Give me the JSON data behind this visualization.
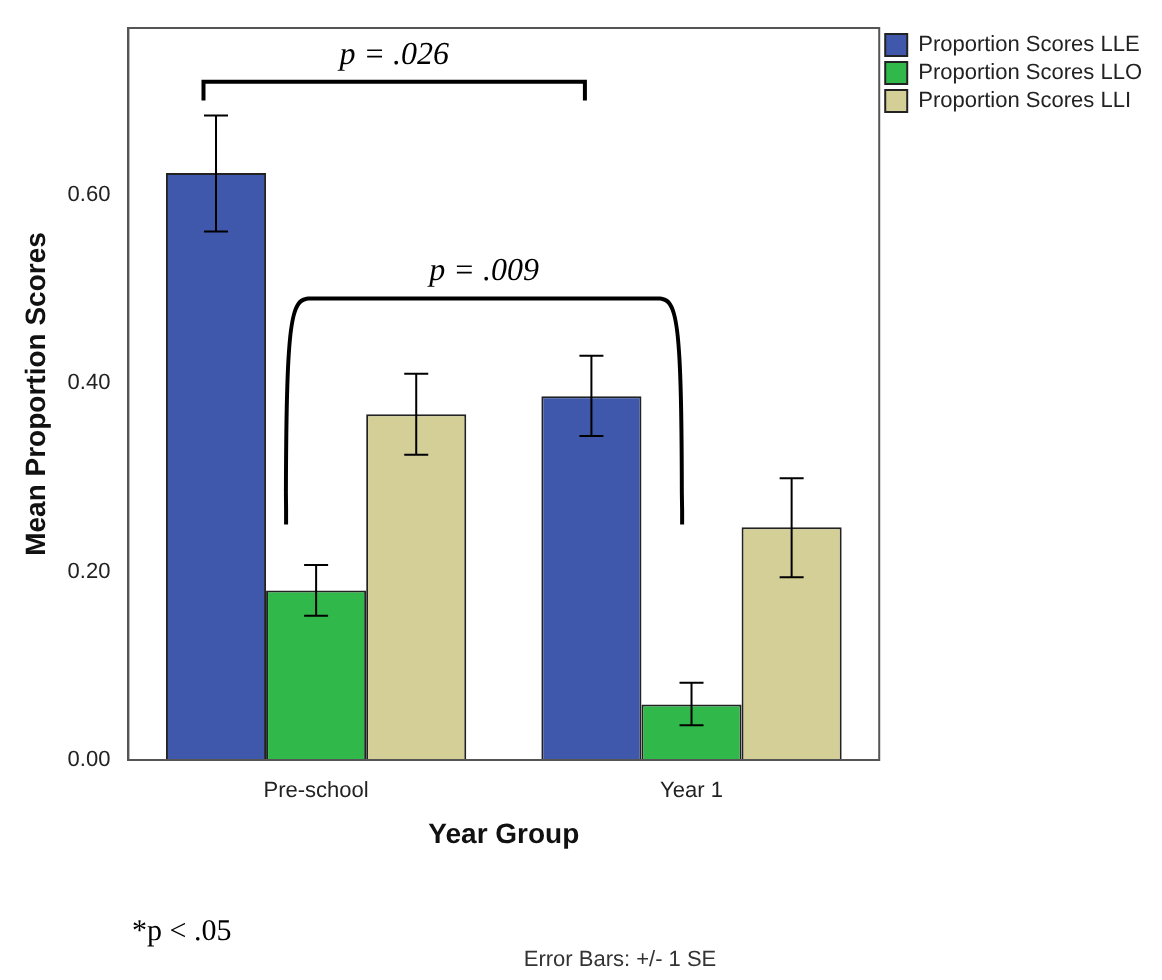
{
  "chart_data": {
    "type": "bar",
    "xlabel": "Year Group",
    "ylabel": "Mean Proportion Scores",
    "categories": [
      "Pre-school",
      "Year 1"
    ],
    "series": [
      {
        "name": "Proportion Scores LLE",
        "color": "#3f58ab",
        "values": [
          0.623,
          0.386
        ],
        "errors": [
          [
            0.561,
            0.684
          ],
          [
            0.344,
            0.429
          ]
        ]
      },
      {
        "name": "Proportion Scores LLO",
        "color": "#30b94a",
        "values": [
          0.18,
          0.059
        ],
        "errors": [
          [
            0.153,
            0.207
          ],
          [
            0.037,
            0.082
          ]
        ]
      },
      {
        "name": "Proportion Scores LLI",
        "color": "#d4cf97",
        "values": [
          0.367,
          0.247
        ],
        "errors": [
          [
            0.324,
            0.41
          ],
          [
            0.194,
            0.299
          ]
        ]
      }
    ],
    "ylim": [
      0,
      0.777
    ],
    "yticks": [
      {
        "value": 0,
        "label": "0.00"
      },
      {
        "value": 0.2,
        "label": "0.20"
      },
      {
        "value": 0.4,
        "label": "0.40"
      },
      {
        "value": 0.6,
        "label": "0.60"
      }
    ],
    "grid": false,
    "legend": "right",
    "annotations": [
      "p = .026",
      "p = .009",
      "*p < .05",
      "Error Bars: +/- 1 SE"
    ]
  }
}
